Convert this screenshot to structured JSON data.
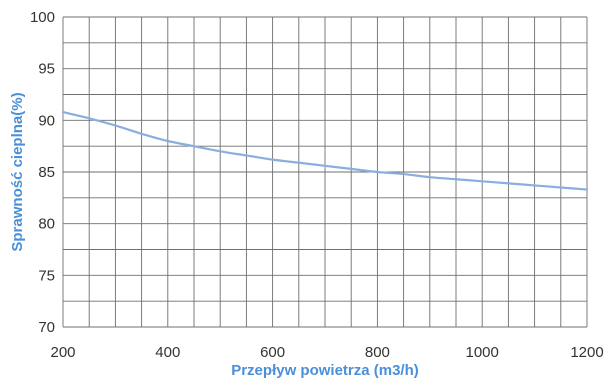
{
  "chart_data": {
    "type": "line",
    "title": "",
    "xlabel": "Przepływ powietrza (m3/h)",
    "ylabel": "Sprawność cieplna(%)",
    "xlim": [
      200,
      1200
    ],
    "ylim": [
      70,
      100
    ],
    "x_ticks": [
      200,
      400,
      600,
      800,
      1000,
      1200
    ],
    "y_ticks": [
      70,
      75,
      80,
      85,
      90,
      95,
      100
    ],
    "grid": true,
    "legend": "none",
    "series": [
      {
        "x": [
          200,
          250,
          300,
          350,
          400,
          450,
          500,
          550,
          600,
          650,
          700,
          750,
          800,
          850,
          900,
          950,
          1000,
          1050,
          1100,
          1150,
          1200
        ],
        "values": [
          90.8,
          90.2,
          89.5,
          88.7,
          88.0,
          87.5,
          87.0,
          86.6,
          86.2,
          85.9,
          85.6,
          85.3,
          85.0,
          84.8,
          84.5,
          84.3,
          84.1,
          83.9,
          83.7,
          83.5,
          83.3
        ]
      }
    ],
    "colors": {
      "line": "#8aaee0",
      "axis_title": "#4a90d9",
      "grid": "#6f6f6f",
      "tick": "#333333"
    }
  }
}
